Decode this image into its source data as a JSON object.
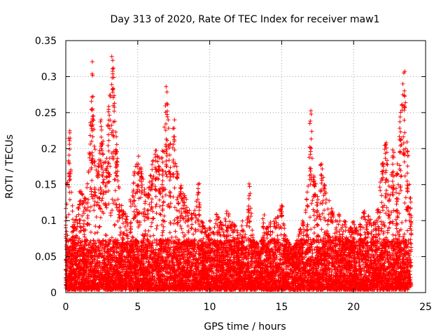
{
  "chart_data": {
    "type": "scatter",
    "title": "Day 313 of 2020, Rate Of TEC Index for receiver maw1",
    "xlabel": "GPS time / hours",
    "ylabel": "ROTI / TECUs",
    "xlim": [
      0,
      25
    ],
    "ylim": [
      0,
      0.35
    ],
    "x_ticks": [
      0,
      5,
      10,
      15,
      20,
      25
    ],
    "y_ticks": [
      0,
      0.05,
      0.1,
      0.15,
      0.2,
      0.25,
      0.3,
      0.35
    ],
    "x_tick_labels": [
      "0",
      "5",
      "10",
      "15",
      "20",
      "25"
    ],
    "y_tick_labels": [
      "0",
      "0.05",
      "0.1",
      "0.15",
      "0.2",
      "0.25",
      "0.3",
      "0.35"
    ],
    "grid": true,
    "marker": "+",
    "color": "#ff0000",
    "data_extent": [
      0,
      24
    ],
    "envelope": [
      [
        0.0,
        0.12
      ],
      [
        0.25,
        0.225
      ],
      [
        0.5,
        0.1
      ],
      [
        0.75,
        0.11
      ],
      [
        1.0,
        0.15
      ],
      [
        1.25,
        0.13
      ],
      [
        1.5,
        0.15
      ],
      [
        1.75,
        0.24
      ],
      [
        1.85,
        0.323
      ],
      [
        2.0,
        0.2
      ],
      [
        2.25,
        0.19
      ],
      [
        2.45,
        0.24
      ],
      [
        2.6,
        0.21
      ],
      [
        2.8,
        0.19
      ],
      [
        3.0,
        0.265
      ],
      [
        3.25,
        0.338
      ],
      [
        3.5,
        0.22
      ],
      [
        3.75,
        0.13
      ],
      [
        4.0,
        0.12
      ],
      [
        4.25,
        0.11
      ],
      [
        4.5,
        0.13
      ],
      [
        4.75,
        0.17
      ],
      [
        5.0,
        0.19
      ],
      [
        5.25,
        0.18
      ],
      [
        5.5,
        0.14
      ],
      [
        5.75,
        0.15
      ],
      [
        6.0,
        0.18
      ],
      [
        6.25,
        0.2
      ],
      [
        6.5,
        0.19
      ],
      [
        6.75,
        0.2
      ],
      [
        7.0,
        0.293
      ],
      [
        7.25,
        0.21
      ],
      [
        7.5,
        0.24
      ],
      [
        7.75,
        0.17
      ],
      [
        8.0,
        0.15
      ],
      [
        8.25,
        0.14
      ],
      [
        8.5,
        0.12
      ],
      [
        8.75,
        0.11
      ],
      [
        9.0,
        0.12
      ],
      [
        9.25,
        0.155
      ],
      [
        9.5,
        0.1
      ],
      [
        9.75,
        0.09
      ],
      [
        10.0,
        0.1
      ],
      [
        10.25,
        0.09
      ],
      [
        10.5,
        0.11
      ],
      [
        10.75,
        0.1
      ],
      [
        11.0,
        0.1
      ],
      [
        11.25,
        0.12
      ],
      [
        11.5,
        0.095
      ],
      [
        11.75,
        0.1
      ],
      [
        12.0,
        0.08
      ],
      [
        12.25,
        0.1
      ],
      [
        12.5,
        0.08
      ],
      [
        12.75,
        0.152
      ],
      [
        13.0,
        0.08
      ],
      [
        13.25,
        0.07
      ],
      [
        13.5,
        0.06
      ],
      [
        13.75,
        0.11
      ],
      [
        14.0,
        0.09
      ],
      [
        14.25,
        0.1
      ],
      [
        14.5,
        0.1
      ],
      [
        14.75,
        0.11
      ],
      [
        15.0,
        0.133
      ],
      [
        15.25,
        0.08
      ],
      [
        15.5,
        0.07
      ],
      [
        15.75,
        0.06
      ],
      [
        16.0,
        0.07
      ],
      [
        16.25,
        0.09
      ],
      [
        16.5,
        0.1
      ],
      [
        16.75,
        0.14
      ],
      [
        17.0,
        0.262
      ],
      [
        17.25,
        0.16
      ],
      [
        17.5,
        0.14
      ],
      [
        17.75,
        0.18
      ],
      [
        18.0,
        0.15
      ],
      [
        18.25,
        0.13
      ],
      [
        18.5,
        0.12
      ],
      [
        18.75,
        0.1
      ],
      [
        19.0,
        0.11
      ],
      [
        19.25,
        0.1
      ],
      [
        19.5,
        0.1
      ],
      [
        19.75,
        0.09
      ],
      [
        20.0,
        0.1
      ],
      [
        20.25,
        0.09
      ],
      [
        20.5,
        0.1
      ],
      [
        20.75,
        0.12
      ],
      [
        21.0,
        0.11
      ],
      [
        21.25,
        0.1
      ],
      [
        21.5,
        0.1
      ],
      [
        21.75,
        0.13
      ],
      [
        22.0,
        0.2
      ],
      [
        22.25,
        0.21
      ],
      [
        22.5,
        0.15
      ],
      [
        22.75,
        0.2
      ],
      [
        23.0,
        0.17
      ],
      [
        23.25,
        0.25
      ],
      [
        23.5,
        0.31
      ],
      [
        23.75,
        0.2
      ],
      [
        24.0,
        0.12
      ]
    ]
  }
}
